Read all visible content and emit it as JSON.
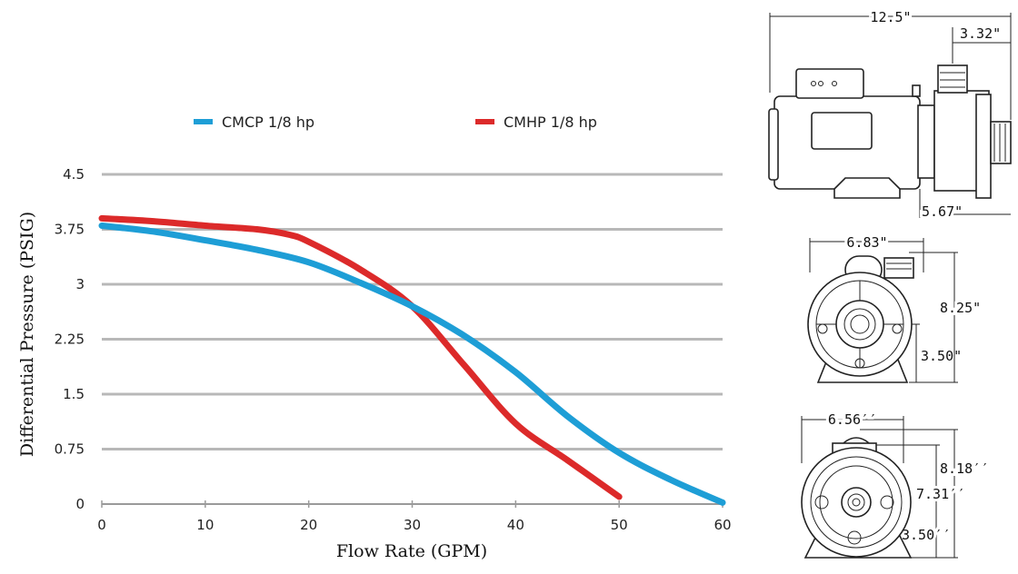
{
  "chart_data": {
    "type": "line",
    "xlabel": "Flow Rate (GPM)",
    "ylabel": "Differential Pressure (PSIG)",
    "xlim": [
      0,
      60
    ],
    "ylim": [
      0,
      4.5
    ],
    "x_ticks": [
      0,
      10,
      20,
      30,
      40,
      50,
      60
    ],
    "y_ticks": [
      0,
      0.75,
      1.5,
      2.25,
      3,
      3.75,
      4.5
    ],
    "y_tick_labels": [
      "0",
      "0.75",
      "1.5",
      "2.25",
      "3",
      "3.75",
      "4.5"
    ],
    "grid": "horizontal",
    "legend_position": "top",
    "series": [
      {
        "name": "CMCP 1/8 hp",
        "color": "#1e9ed6",
        "x": [
          0,
          5,
          10,
          15,
          20,
          25,
          30,
          35,
          40,
          45,
          50,
          55,
          60
        ],
        "y": [
          3.8,
          3.72,
          3.6,
          3.47,
          3.3,
          3.02,
          2.7,
          2.3,
          1.8,
          1.2,
          0.7,
          0.33,
          0.02
        ]
      },
      {
        "name": "CMHP 1/8 hp",
        "color": "#dc2a2a",
        "x": [
          0,
          5,
          10,
          15,
          18,
          20,
          25,
          30,
          35,
          40,
          45,
          50
        ],
        "y": [
          3.9,
          3.86,
          3.8,
          3.75,
          3.68,
          3.58,
          3.2,
          2.7,
          1.9,
          1.1,
          0.6,
          0.1
        ]
      }
    ]
  },
  "dimensions": {
    "side_view": {
      "overall_length": "12.5\"",
      "port_length": "3.32\"",
      "base_length": "5.67\""
    },
    "front_view_1": {
      "width": "6.83\"",
      "height": "8.25\"",
      "center_height": "3.50\""
    },
    "front_view_2": {
      "width": "6.56′′",
      "height": "8.18′′",
      "port_height": "7.31′′",
      "center_height": "3.50′′"
    }
  }
}
